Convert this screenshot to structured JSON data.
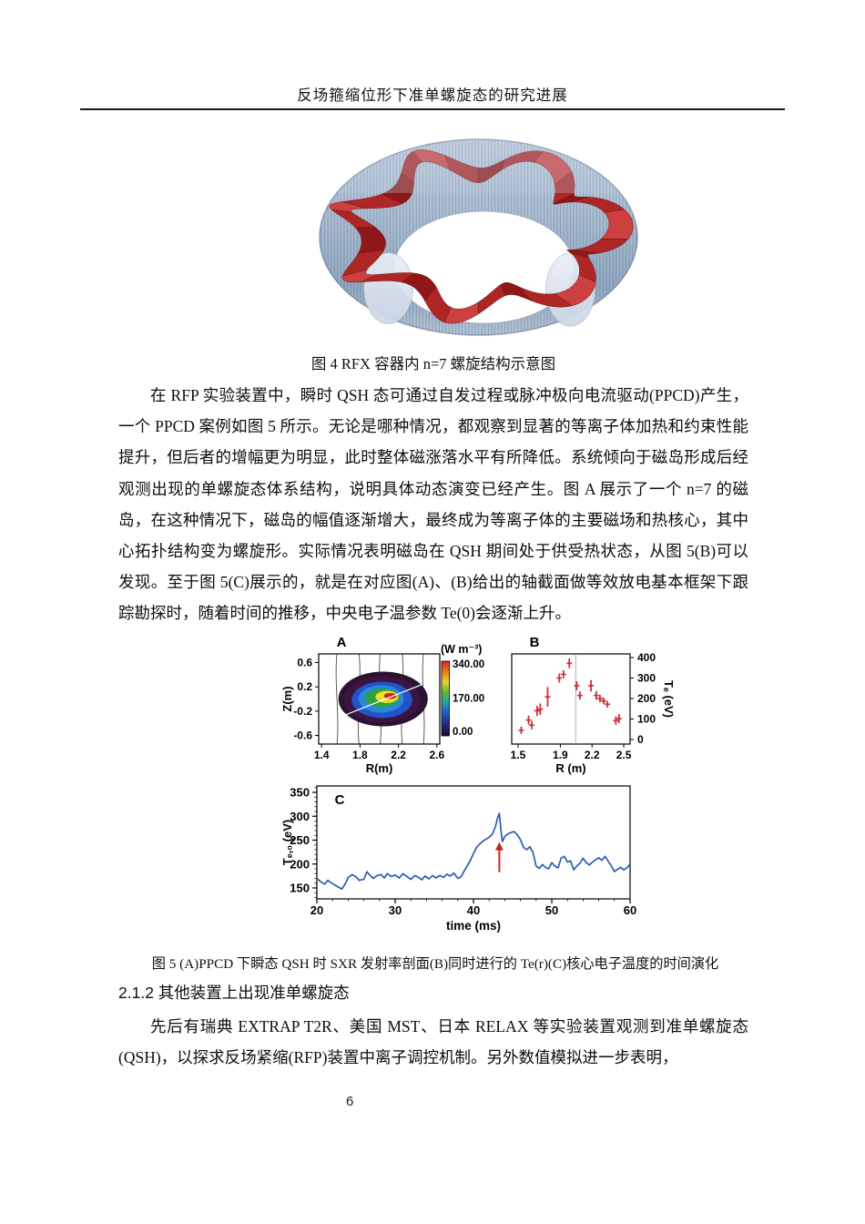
{
  "header": {
    "title": "反场箍缩位形下准单螺旋态的研究进展"
  },
  "figure4": {
    "caption": "图 4 RFX 容器内 n=7 螺旋结构示意图"
  },
  "body": {
    "paragraph1": "在 RFP 实验装置中，瞬时 QSH 态可通过自发过程或脉冲极向电流驱动(PPCD)产生，一个 PPCD 案例如图 5 所示。无论是哪种情况，都观察到显著的等离子体加热和约束性能提升，但后者的增幅更为明显，此时整体磁涨落水平有所降低。系统倾向于磁岛形成后经观测出现的单螺旋态体系结构，说明具体动态演变已经产生。图 A 展示了一个 n=7 的磁岛，在这种情况下，磁岛的幅值逐渐增大，最终成为等离子体的主要磁场和热核心，其中心拓扑结构变为螺旋形。实际情况表明磁岛在 QSH 期间处于供受热状态，从图 5(B)可以发现。至于图 5(C)展示的，就是在对应图(A)、(B)给出的轴截面做等效放电基本框架下跟踪勘探时，随着时间的推移，中央电子温参数 Te(0)会逐渐上升。",
    "section_heading": "2.1.2 其他装置上出现准单螺旋态",
    "paragraph2": "先后有瑞典 EXTRAP T2R、美国 MST、日本 RELAX 等实验装置观测到准单螺旋态(QSH)，以探求反场紧缩(RFP)装置中离子调控机制。另外数值模拟进一步表明，"
  },
  "figure5": {
    "caption": "图 5  (A)PPCD 下瞬态 QSH 时 SXR 发射率剖面(B)同时进行的 Te(r)(C)核心电子温度的时间演化"
  },
  "footer": {
    "page_number": "6"
  },
  "chart_data": [
    {
      "type": "heatmap",
      "panel": "A",
      "xlabel": "R(m)",
      "ylabel": "Z(m)",
      "xticks": [
        1.4,
        1.8,
        2.2,
        2.6
      ],
      "yticks": [
        0.6,
        0.2,
        -0.2,
        -0.6
      ],
      "xlim": [
        1.37,
        2.63
      ],
      "ylim": [
        -0.742,
        0.742
      ],
      "colorbar": {
        "title": "(W m⁻³)",
        "ticks": [
          "340.00",
          "170.00",
          "0.00"
        ]
      },
      "contour_levels": [
        {
          "R": 2.04,
          "Z": 0.0,
          "rx": 0.465,
          "ry": 0.45,
          "color": "#2a1232"
        },
        {
          "R": 2.03,
          "Z": -0.01,
          "rx": 0.4,
          "ry": 0.385,
          "color": "#3d1340"
        },
        {
          "R": 2.03,
          "Z": -0.015,
          "rx": 0.315,
          "ry": 0.3,
          "color": "#2153cb"
        },
        {
          "R": 2.02,
          "Z": 0.0,
          "rx": 0.235,
          "ry": 0.225,
          "color": "#2b87d8"
        },
        {
          "R": 2.03,
          "Z": 0.02,
          "rx": 0.175,
          "ry": 0.155,
          "color": "#2fa23b"
        },
        {
          "R": 2.08,
          "Z": 0.035,
          "rx": 0.12,
          "ry": 0.1,
          "color": "#e8e02c"
        },
        {
          "R": 2.115,
          "Z": 0.05,
          "rx": 0.066,
          "ry": 0.05,
          "color": "#d81f1f"
        }
      ],
      "diag_line": {
        "x1": 1.62,
        "y1": -0.28,
        "x2": 2.44,
        "y2": 0.235
      },
      "field_line_R": [
        1.56,
        1.79,
        2.01,
        2.24,
        2.46
      ]
    },
    {
      "type": "scatter",
      "panel": "B",
      "xlabel": "R (m)",
      "ylabel": "Tₑ (eV)",
      "xticks": [
        1.5,
        1.9,
        2.2,
        2.5
      ],
      "yticks": [
        0,
        100,
        200,
        300,
        400
      ],
      "xlim": [
        1.44,
        2.56
      ],
      "ylim": [
        0,
        400
      ],
      "vline_R": 2.045,
      "marker_color": "#cc3340",
      "points": [
        [
          1.53,
          45,
          18
        ],
        [
          1.6,
          95,
          22
        ],
        [
          1.63,
          70,
          20
        ],
        [
          1.68,
          140,
          25
        ],
        [
          1.71,
          148,
          28
        ],
        [
          1.78,
          208,
          48
        ],
        [
          1.89,
          300,
          22
        ],
        [
          1.93,
          318,
          20
        ],
        [
          1.985,
          372,
          24
        ],
        [
          2.055,
          262,
          22
        ],
        [
          2.085,
          215,
          20
        ],
        [
          2.19,
          262,
          28
        ],
        [
          2.24,
          215,
          22
        ],
        [
          2.275,
          200,
          18
        ],
        [
          2.31,
          188,
          16
        ],
        [
          2.345,
          172,
          16
        ],
        [
          2.425,
          92,
          20
        ],
        [
          2.455,
          102,
          22
        ]
      ]
    },
    {
      "type": "line",
      "panel": "C",
      "xlabel": "time (ms)",
      "ylabel": "Tₑ,₀ (eV)",
      "xticks": [
        20,
        30,
        40,
        50,
        60
      ],
      "yticks": [
        150,
        200,
        250,
        300,
        350
      ],
      "xlim": [
        20,
        60
      ],
      "ylim": [
        127,
        363
      ],
      "line_color": "#2b5cb0",
      "arrow": {
        "t": 43.3,
        "y_from": 183,
        "y_to": 246,
        "color": "#cc2222"
      },
      "series": [
        [
          20,
          170
        ],
        [
          20.5,
          163
        ],
        [
          21,
          158
        ],
        [
          21.4,
          166
        ],
        [
          21.8,
          161
        ],
        [
          22.2,
          157
        ],
        [
          22.7,
          152
        ],
        [
          23.2,
          148
        ],
        [
          23.6,
          158
        ],
        [
          24,
          172
        ],
        [
          24.5,
          178
        ],
        [
          25,
          173
        ],
        [
          25.4,
          166
        ],
        [
          26,
          168
        ],
        [
          26.4,
          184
        ],
        [
          26.8,
          176
        ],
        [
          27.2,
          170
        ],
        [
          27.7,
          176
        ],
        [
          28.2,
          178
        ],
        [
          28.6,
          171
        ],
        [
          29,
          180
        ],
        [
          29.5,
          174
        ],
        [
          30,
          177
        ],
        [
          30.5,
          171
        ],
        [
          31,
          180
        ],
        [
          31.5,
          174
        ],
        [
          32,
          168
        ],
        [
          32.5,
          176
        ],
        [
          33,
          172
        ],
        [
          33.4,
          167
        ],
        [
          33.8,
          175
        ],
        [
          34.3,
          169
        ],
        [
          34.8,
          176
        ],
        [
          35.2,
          171
        ],
        [
          35.7,
          176
        ],
        [
          36.2,
          172
        ],
        [
          36.6,
          179
        ],
        [
          37,
          175
        ],
        [
          37.5,
          181
        ],
        [
          38,
          170
        ],
        [
          38.4,
          173
        ],
        [
          38.8,
          185
        ],
        [
          39.2,
          196
        ],
        [
          39.6,
          208
        ],
        [
          40,
          222
        ],
        [
          40.4,
          235
        ],
        [
          40.8,
          242
        ],
        [
          41.2,
          248
        ],
        [
          41.6,
          252
        ],
        [
          42,
          256
        ],
        [
          42.4,
          262
        ],
        [
          42.8,
          278
        ],
        [
          43.1,
          298
        ],
        [
          43.3,
          306
        ],
        [
          43.5,
          272
        ],
        [
          43.7,
          247
        ],
        [
          44,
          258
        ],
        [
          44.4,
          263
        ],
        [
          44.8,
          266
        ],
        [
          45.2,
          268
        ],
        [
          45.6,
          261
        ],
        [
          46,
          251
        ],
        [
          46.4,
          235
        ],
        [
          46.8,
          230
        ],
        [
          47.2,
          236
        ],
        [
          47.6,
          224
        ],
        [
          48,
          196
        ],
        [
          48.4,
          191
        ],
        [
          48.8,
          199
        ],
        [
          49.2,
          193
        ],
        [
          49.6,
          190
        ],
        [
          50,
          203
        ],
        [
          50.4,
          196
        ],
        [
          50.8,
          192
        ],
        [
          51.2,
          212
        ],
        [
          51.6,
          216
        ],
        [
          52,
          204
        ],
        [
          52.4,
          207
        ],
        [
          52.8,
          188
        ],
        [
          53.2,
          196
        ],
        [
          53.6,
          202
        ],
        [
          54,
          212
        ],
        [
          54.4,
          203
        ],
        [
          54.8,
          198
        ],
        [
          55.2,
          204
        ],
        [
          55.6,
          209
        ],
        [
          56,
          213
        ],
        [
          56.4,
          208
        ],
        [
          56.8,
          216
        ],
        [
          57.2,
          206
        ],
        [
          57.6,
          196
        ],
        [
          58,
          184
        ],
        [
          58.4,
          189
        ],
        [
          58.8,
          193
        ],
        [
          59.2,
          188
        ],
        [
          59.6,
          192
        ],
        [
          60,
          200
        ]
      ]
    }
  ]
}
